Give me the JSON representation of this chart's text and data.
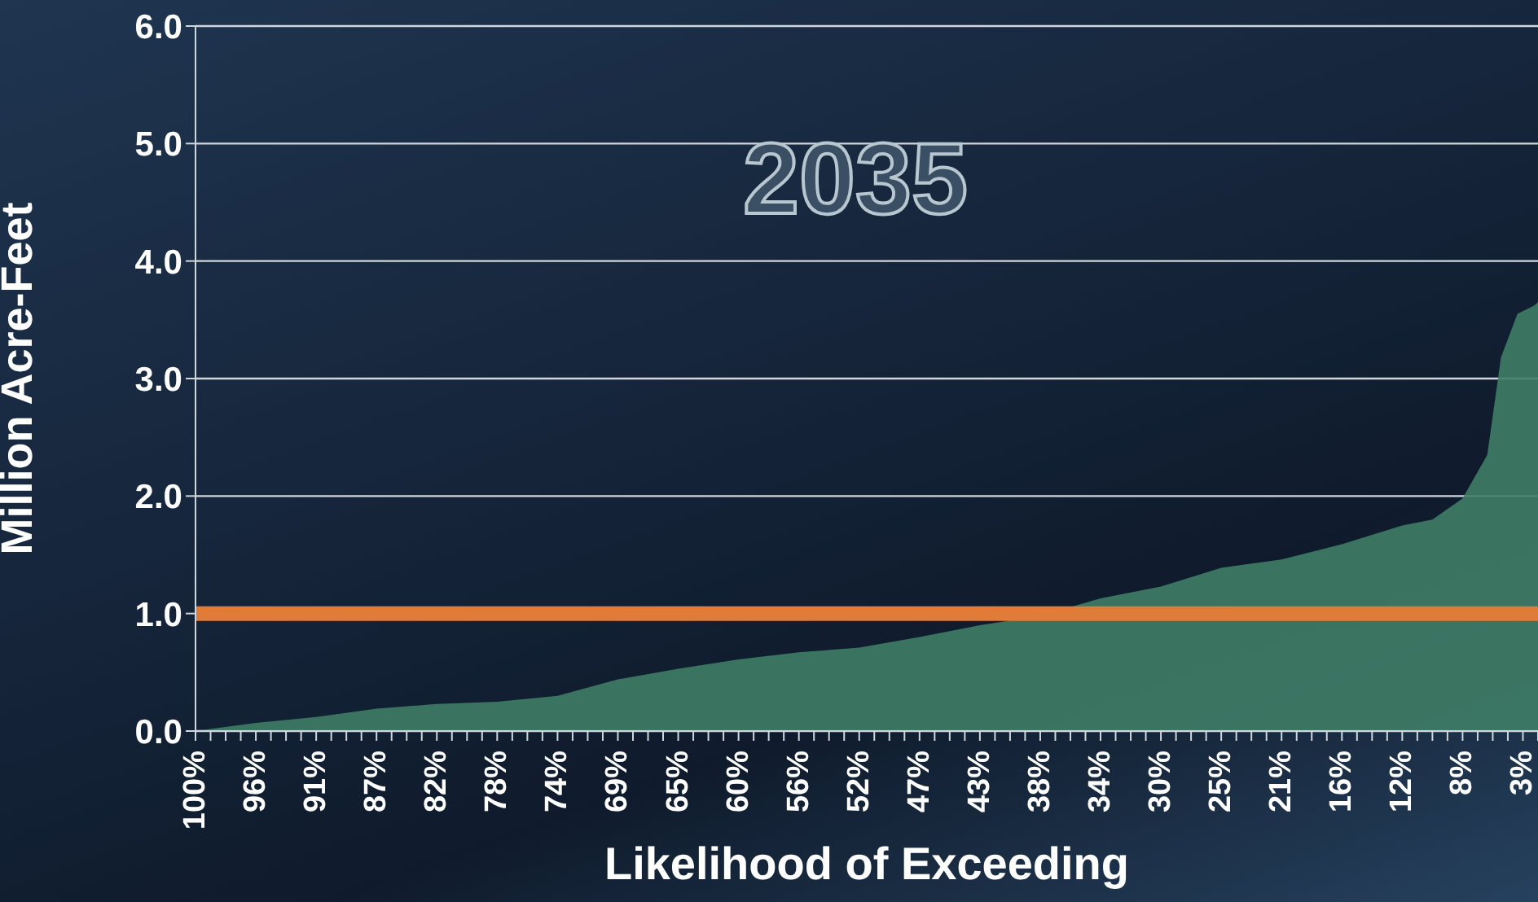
{
  "chart_data": {
    "type": "area",
    "xlabel": "Likelihood of Exceeding",
    "ylabel": "Million Acre-Feet",
    "annotations": [
      "2035"
    ],
    "x": [
      100,
      95.6,
      91.2,
      86.8,
      82.4,
      78,
      73.6,
      69.2,
      64.8,
      60.4,
      56,
      51.6,
      47.2,
      42.8,
      38.4,
      34,
      29.6,
      25.2,
      20.8,
      16.4,
      12,
      9.8,
      7.6,
      5.8,
      4.8,
      3.6,
      2.4,
      2.1
    ],
    "series": [
      {
        "color": "#3f7d66",
        "values": [
          0,
          0.07,
          0.12,
          0.19,
          0.23,
          0.25,
          0.3,
          0.44,
          0.53,
          0.61,
          0.67,
          0.71,
          0.8,
          0.9,
          0.98,
          1.13,
          1.23,
          1.39,
          1.46,
          1.59,
          1.75,
          1.8,
          1.98,
          2.35,
          3.18,
          3.55,
          3.62,
          3.65
        ]
      }
    ],
    "xlim": [
      100,
      2.1
    ],
    "xticks": [
      {
        "value": 100,
        "label": "100%"
      },
      {
        "value": 98.9,
        "label": null
      },
      {
        "value": 97.8,
        "label": null
      },
      {
        "value": 96.7,
        "label": null
      },
      {
        "value": 95.6,
        "label": "96%"
      },
      {
        "value": 94.5,
        "label": null
      },
      {
        "value": 93.4,
        "label": null
      },
      {
        "value": 92.3,
        "label": null
      },
      {
        "value": 91.2,
        "label": "91%"
      },
      {
        "value": 90.1,
        "label": null
      },
      {
        "value": 89,
        "label": null
      },
      {
        "value": 87.9,
        "label": null
      },
      {
        "value": 86.8,
        "label": "87%"
      },
      {
        "value": 85.7,
        "label": null
      },
      {
        "value": 84.6,
        "label": null
      },
      {
        "value": 83.5,
        "label": null
      },
      {
        "value": 82.4,
        "label": "82%"
      },
      {
        "value": 81.3,
        "label": null
      },
      {
        "value": 80.2,
        "label": null
      },
      {
        "value": 79.1,
        "label": null
      },
      {
        "value": 78,
        "label": "78%"
      },
      {
        "value": 76.9,
        "label": null
      },
      {
        "value": 75.8,
        "label": null
      },
      {
        "value": 74.7,
        "label": null
      },
      {
        "value": 73.6,
        "label": "74%"
      },
      {
        "value": 72.5,
        "label": null
      },
      {
        "value": 71.4,
        "label": null
      },
      {
        "value": 70.3,
        "label": null
      },
      {
        "value": 69.2,
        "label": "69%"
      },
      {
        "value": 68.1,
        "label": null
      },
      {
        "value": 67,
        "label": null
      },
      {
        "value": 65.9,
        "label": null
      },
      {
        "value": 64.8,
        "label": "65%"
      },
      {
        "value": 63.7,
        "label": null
      },
      {
        "value": 62.6,
        "label": null
      },
      {
        "value": 61.5,
        "label": null
      },
      {
        "value": 60.4,
        "label": "60%"
      },
      {
        "value": 59.3,
        "label": null
      },
      {
        "value": 58.2,
        "label": null
      },
      {
        "value": 57.1,
        "label": null
      },
      {
        "value": 56,
        "label": "56%"
      },
      {
        "value": 54.9,
        "label": null
      },
      {
        "value": 53.8,
        "label": null
      },
      {
        "value": 52.7,
        "label": null
      },
      {
        "value": 51.6,
        "label": "52%"
      },
      {
        "value": 50.5,
        "label": null
      },
      {
        "value": 49.4,
        "label": null
      },
      {
        "value": 48.3,
        "label": null
      },
      {
        "value": 47.2,
        "label": "47%"
      },
      {
        "value": 46.1,
        "label": null
      },
      {
        "value": 45,
        "label": null
      },
      {
        "value": 43.9,
        "label": null
      },
      {
        "value": 42.8,
        "label": "43%"
      },
      {
        "value": 41.7,
        "label": null
      },
      {
        "value": 40.6,
        "label": null
      },
      {
        "value": 39.5,
        "label": null
      },
      {
        "value": 38.4,
        "label": "38%"
      },
      {
        "value": 37.3,
        "label": null
      },
      {
        "value": 36.2,
        "label": null
      },
      {
        "value": 35.1,
        "label": null
      },
      {
        "value": 34,
        "label": "34%"
      },
      {
        "value": 32.9,
        "label": null
      },
      {
        "value": 31.8,
        "label": null
      },
      {
        "value": 30.7,
        "label": null
      },
      {
        "value": 29.6,
        "label": "30%"
      },
      {
        "value": 28.5,
        "label": null
      },
      {
        "value": 27.4,
        "label": null
      },
      {
        "value": 26.3,
        "label": null
      },
      {
        "value": 25.2,
        "label": "25%"
      },
      {
        "value": 24.1,
        "label": null
      },
      {
        "value": 23,
        "label": null
      },
      {
        "value": 21.9,
        "label": null
      },
      {
        "value": 20.8,
        "label": "21%"
      },
      {
        "value": 19.7,
        "label": null
      },
      {
        "value": 18.6,
        "label": null
      },
      {
        "value": 17.5,
        "label": null
      },
      {
        "value": 16.4,
        "label": "16%"
      },
      {
        "value": 15.3,
        "label": null
      },
      {
        "value": 14.2,
        "label": null
      },
      {
        "value": 13.1,
        "label": null
      },
      {
        "value": 12,
        "label": "12%"
      },
      {
        "value": 10.9,
        "label": null
      },
      {
        "value": 9.8,
        "label": null
      },
      {
        "value": 8.7,
        "label": null
      },
      {
        "value": 7.6,
        "label": "8%"
      },
      {
        "value": 6.5,
        "label": null
      },
      {
        "value": 5.4,
        "label": null
      },
      {
        "value": 4.3,
        "label": null
      },
      {
        "value": 3.2,
        "label": "3%"
      },
      {
        "value": 2.1,
        "label": null
      }
    ],
    "ylim": [
      0,
      6
    ],
    "yticks": [
      {
        "value": 0,
        "label": "0.0"
      },
      {
        "value": 1,
        "label": "1.0"
      },
      {
        "value": 2,
        "label": "2.0"
      },
      {
        "value": 3,
        "label": "3.0"
      },
      {
        "value": 4,
        "label": "4.0"
      },
      {
        "value": 5,
        "label": "5.0"
      },
      {
        "value": 6,
        "label": "6.0"
      }
    ],
    "grid": "y",
    "legend": false,
    "ref_lines": [
      {
        "axis": "y",
        "value": 1,
        "color": "#e07b39"
      }
    ]
  }
}
